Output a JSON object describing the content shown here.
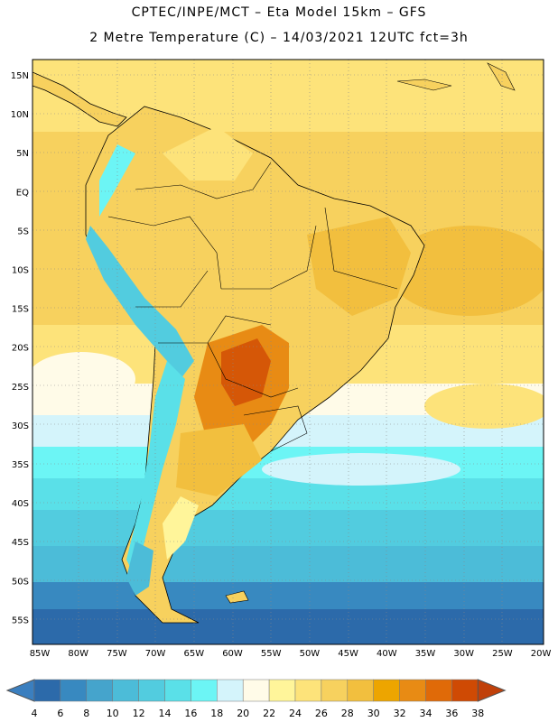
{
  "title_line1": "CPTEC/INPE/MCT –  Eta Model 15km – GFS",
  "title_line2": "2 Metre Temperature (C) – 14/03/2021 12UTC fct=3h",
  "lat_labels": [
    "15N",
    "10N",
    "5N",
    "EQ",
    "5S",
    "10S",
    "15S",
    "20S",
    "25S",
    "30S",
    "35S",
    "40S",
    "45S",
    "50S",
    "55S"
  ],
  "lon_labels": [
    "85W",
    "80W",
    "75W",
    "70W",
    "65W",
    "60W",
    "55W",
    "50W",
    "45W",
    "40W",
    "35W",
    "30W",
    "25W",
    "20W"
  ],
  "colorbar": {
    "ticks": [
      "4",
      "6",
      "8",
      "10",
      "12",
      "14",
      "16",
      "18",
      "20",
      "22",
      "24",
      "26",
      "28",
      "30",
      "32",
      "34",
      "36",
      "38"
    ],
    "low_color": "#3b7fbf",
    "high_color": "#c0400a",
    "colors": [
      "#2c6aaa",
      "#3889c0",
      "#45a4cc",
      "#4cbcd8",
      "#52ccdf",
      "#5ae0e8",
      "#6cf5f5",
      "#d4f4fb",
      "#fffbe8",
      "#fff59a",
      "#fde37a",
      "#f7d15e",
      "#f2bf3e",
      "#eda500",
      "#e88b14",
      "#e06a08",
      "#cf4a04"
    ]
  }
}
